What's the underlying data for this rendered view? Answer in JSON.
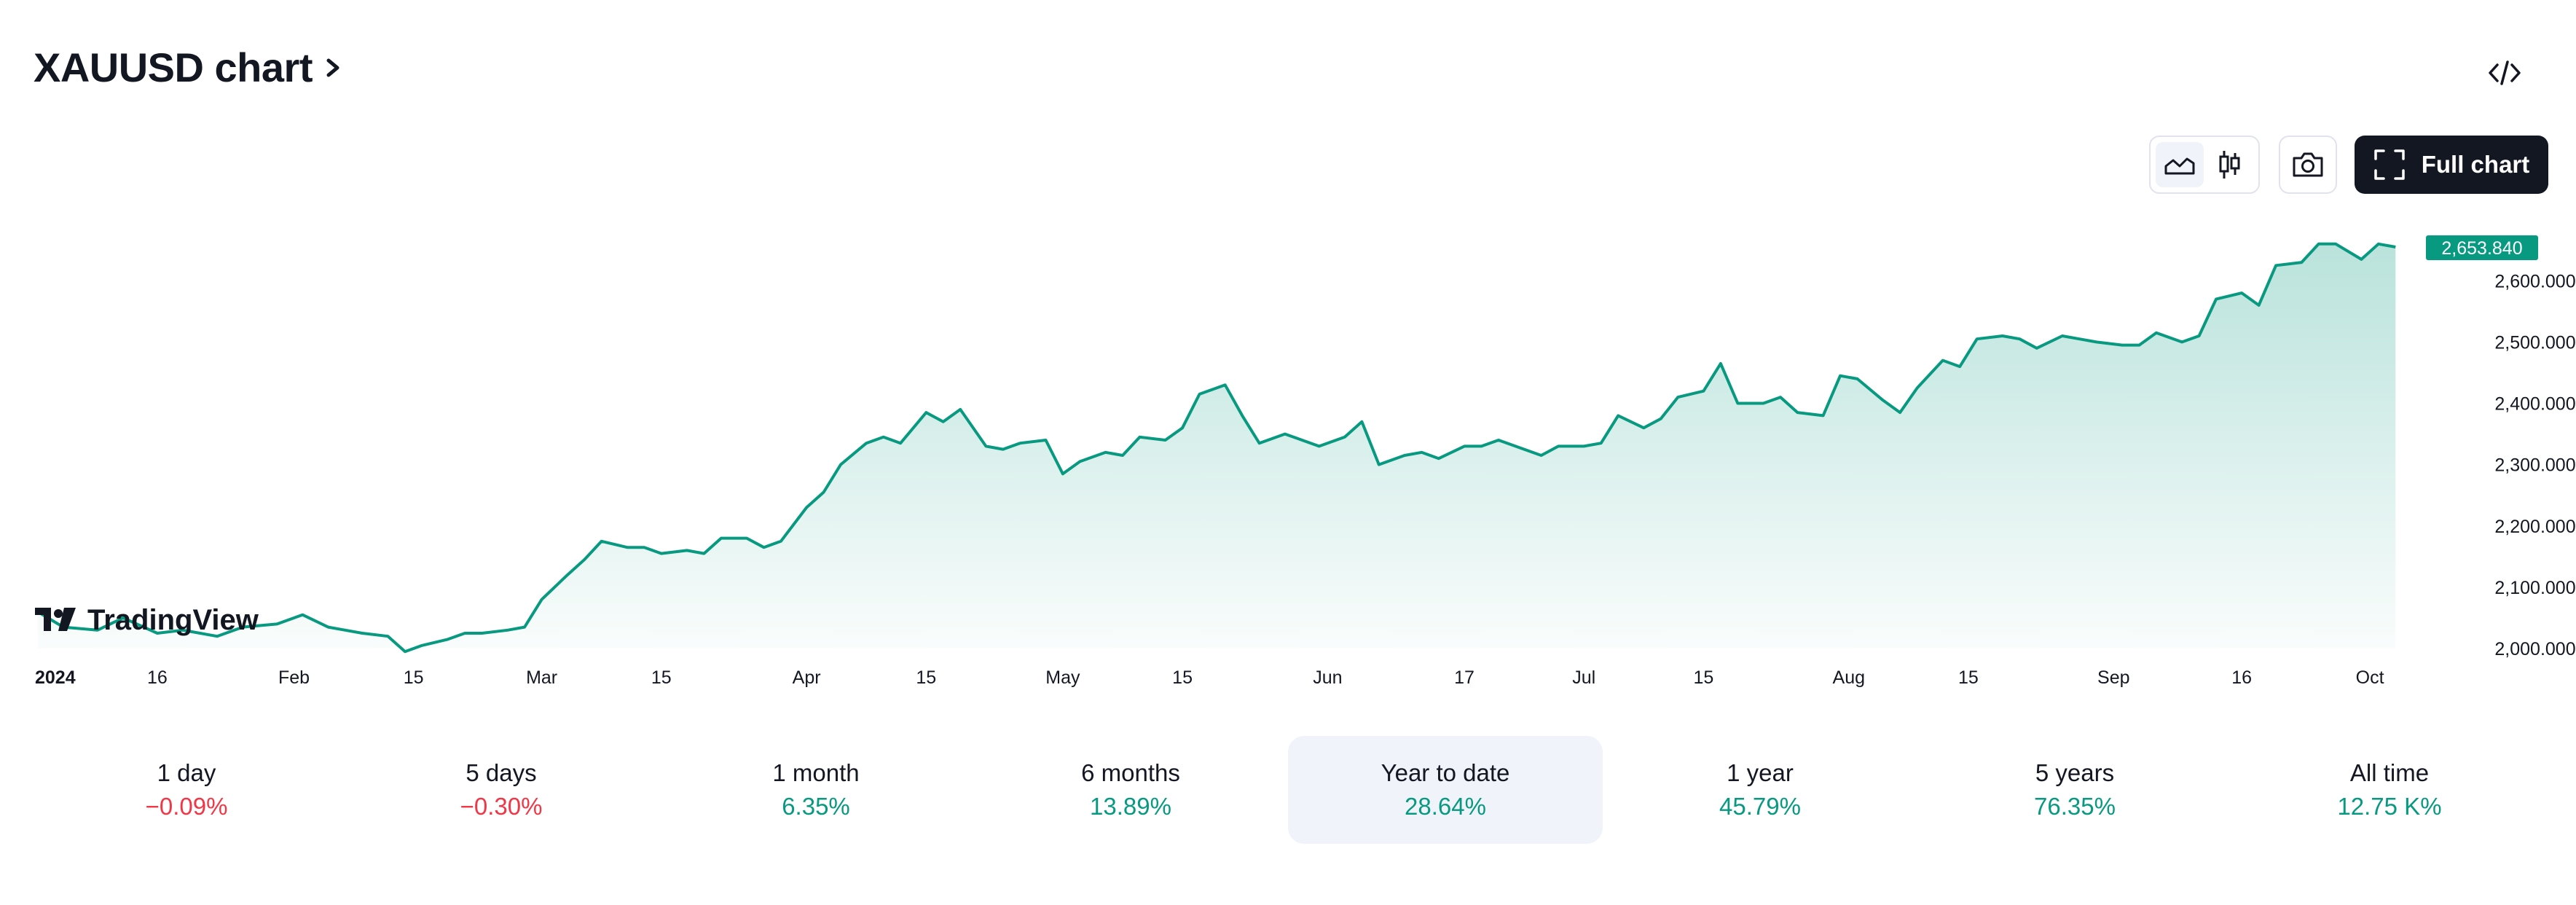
{
  "header": {
    "title": "XAUUSD chart"
  },
  "toolbar": {
    "full_chart_label": "Full chart"
  },
  "branding": {
    "logo_text": "TradingView"
  },
  "colors": {
    "line": "#089981",
    "last_badge": "#089981",
    "down": "#f23645",
    "text": "#131722"
  },
  "icons": [
    "chevron-right-icon",
    "code-icon",
    "area-chart-icon",
    "candles-icon",
    "camera-icon",
    "fullscreen-icon"
  ],
  "ranges": [
    {
      "label": "1 day",
      "value": "−0.09%",
      "dir": "down",
      "active": false
    },
    {
      "label": "5 days",
      "value": "−0.30%",
      "dir": "down",
      "active": false
    },
    {
      "label": "1 month",
      "value": "6.35%",
      "dir": "up",
      "active": false
    },
    {
      "label": "6 months",
      "value": "13.89%",
      "dir": "up",
      "active": false
    },
    {
      "label": "Year to date",
      "value": "28.64%",
      "dir": "up",
      "active": true
    },
    {
      "label": "1 year",
      "value": "45.79%",
      "dir": "up",
      "active": false
    },
    {
      "label": "5 years",
      "value": "76.35%",
      "dir": "up",
      "active": false
    },
    {
      "label": "All time",
      "value": "12.75 K%",
      "dir": "up",
      "active": false
    }
  ],
  "chart_data": {
    "type": "area",
    "title": "",
    "ylim": [
      2000,
      2680
    ],
    "y_ticks": [
      "2,000.000",
      "2,100.000",
      "2,200.000",
      "2,300.000",
      "2,400.000",
      "2,500.000",
      "2,600.000"
    ],
    "y_tick_values": [
      2000,
      2100,
      2200,
      2300,
      2400,
      2500,
      2600
    ],
    "last_value_label": "2,653.840",
    "last_value": 2653.84,
    "x_ticks": [
      {
        "label": "2024",
        "date": "2024-01-01"
      },
      {
        "label": "16",
        "date": "2024-01-16"
      },
      {
        "label": "Feb",
        "date": "2024-02-01"
      },
      {
        "label": "15",
        "date": "2024-02-15"
      },
      {
        "label": "Mar",
        "date": "2024-03-01"
      },
      {
        "label": "15",
        "date": "2024-03-15"
      },
      {
        "label": "Apr",
        "date": "2024-04-01"
      },
      {
        "label": "15",
        "date": "2024-04-15"
      },
      {
        "label": "May",
        "date": "2024-05-01"
      },
      {
        "label": "15",
        "date": "2024-05-15"
      },
      {
        "label": "Jun",
        "date": "2024-06-01"
      },
      {
        "label": "17",
        "date": "2024-06-17"
      },
      {
        "label": "Jul",
        "date": "2024-07-01"
      },
      {
        "label": "15",
        "date": "2024-07-15"
      },
      {
        "label": "Aug",
        "date": "2024-08-01"
      },
      {
        "label": "15",
        "date": "2024-08-15"
      },
      {
        "label": "Sep",
        "date": "2024-09-01"
      },
      {
        "label": "16",
        "date": "2024-09-16"
      },
      {
        "label": "Oct",
        "date": "2024-10-01"
      }
    ],
    "x_range": [
      "2024-01-01",
      "2024-10-05"
    ],
    "series": [
      {
        "x": [
          "2024-01-02",
          "2024-01-05",
          "2024-01-09",
          "2024-01-12",
          "2024-01-16",
          "2024-01-19",
          "2024-01-23",
          "2024-01-26",
          "2024-01-30",
          "2024-02-02",
          "2024-02-05",
          "2024-02-07",
          "2024-02-09",
          "2024-02-12",
          "2024-02-14",
          "2024-02-16",
          "2024-02-19",
          "2024-02-21",
          "2024-02-23",
          "2024-02-26",
          "2024-02-28",
          "2024-03-01",
          "2024-03-04",
          "2024-03-06",
          "2024-03-08",
          "2024-03-11",
          "2024-03-13",
          "2024-03-15",
          "2024-03-18",
          "2024-03-20",
          "2024-03-22",
          "2024-03-25",
          "2024-03-27",
          "2024-03-29",
          "2024-04-01",
          "2024-04-03",
          "2024-04-05",
          "2024-04-08",
          "2024-04-10",
          "2024-04-12",
          "2024-04-15",
          "2024-04-17",
          "2024-04-19",
          "2024-04-22",
          "2024-04-24",
          "2024-04-26",
          "2024-04-29",
          "2024-05-01",
          "2024-05-03",
          "2024-05-06",
          "2024-05-08",
          "2024-05-10",
          "2024-05-13",
          "2024-05-15",
          "2024-05-17",
          "2024-05-20",
          "2024-05-22",
          "2024-05-24",
          "2024-05-27",
          "2024-05-29",
          "2024-05-31",
          "2024-06-03",
          "2024-06-05",
          "2024-06-07",
          "2024-06-10",
          "2024-06-12",
          "2024-06-14",
          "2024-06-17",
          "2024-06-19",
          "2024-06-21",
          "2024-06-24",
          "2024-06-26",
          "2024-06-28",
          "2024-07-01",
          "2024-07-03",
          "2024-07-05",
          "2024-07-08",
          "2024-07-10",
          "2024-07-12",
          "2024-07-15",
          "2024-07-17",
          "2024-07-19",
          "2024-07-22",
          "2024-07-24",
          "2024-07-26",
          "2024-07-29",
          "2024-07-31",
          "2024-08-02",
          "2024-08-05",
          "2024-08-07",
          "2024-08-09",
          "2024-08-12",
          "2024-08-14",
          "2024-08-16",
          "2024-08-19",
          "2024-08-21",
          "2024-08-23",
          "2024-08-26",
          "2024-08-28",
          "2024-08-30",
          "2024-09-02",
          "2024-09-04",
          "2024-09-06",
          "2024-09-09",
          "2024-09-11",
          "2024-09-13",
          "2024-09-16",
          "2024-09-18",
          "2024-09-20",
          "2024-09-23",
          "2024-09-25",
          "2024-09-27",
          "2024-09-30",
          "2024-10-02",
          "2024-10-04"
        ],
        "values": [
          2060,
          2035,
          2030,
          2050,
          2025,
          2030,
          2020,
          2035,
          2040,
          2055,
          2035,
          2030,
          2025,
          2020,
          1995,
          2005,
          2015,
          2025,
          2025,
          2030,
          2035,
          2080,
          2120,
          2145,
          2175,
          2165,
          2165,
          2155,
          2160,
          2155,
          2180,
          2180,
          2165,
          2175,
          2230,
          2255,
          2300,
          2335,
          2345,
          2335,
          2385,
          2370,
          2390,
          2330,
          2325,
          2335,
          2340,
          2285,
          2305,
          2320,
          2315,
          2345,
          2340,
          2360,
          2415,
          2430,
          2380,
          2335,
          2350,
          2340,
          2330,
          2345,
          2370,
          2300,
          2315,
          2320,
          2310,
          2330,
          2330,
          2340,
          2325,
          2315,
          2330,
          2330,
          2335,
          2380,
          2360,
          2375,
          2410,
          2420,
          2465,
          2400,
          2400,
          2410,
          2385,
          2380,
          2445,
          2440,
          2405,
          2385,
          2425,
          2470,
          2460,
          2505,
          2510,
          2505,
          2490,
          2510,
          2505,
          2500,
          2495,
          2495,
          2515,
          2500,
          2510,
          2570,
          2580,
          2560,
          2625,
          2630,
          2660,
          2660,
          2635,
          2660,
          2655
        ]
      }
    ]
  }
}
